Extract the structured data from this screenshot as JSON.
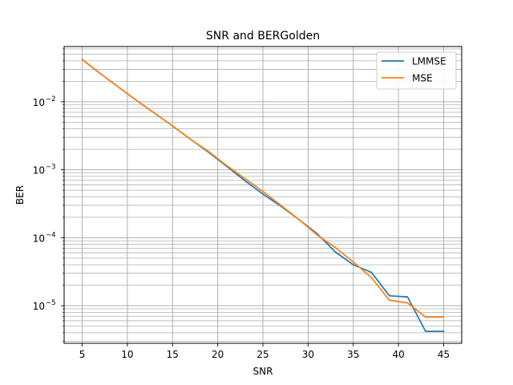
{
  "chart_data": {
    "type": "line",
    "title": "SNR and BERGolden",
    "xlabel": "SNR",
    "ylabel": "BER",
    "xlim": [
      3,
      47
    ],
    "ylim": [
      2.8e-06,
      0.065
    ],
    "yscale": "log",
    "grid": "major and minor, both axes",
    "legend_position": "top-right",
    "x_ticks": [
      5,
      10,
      15,
      20,
      25,
      30,
      35,
      40,
      45
    ],
    "x_tick_labels": [
      "5",
      "10",
      "15",
      "20",
      "25",
      "30",
      "35",
      "40",
      "45"
    ],
    "y_ticks": [
      1e-05,
      0.0001,
      0.001,
      0.01
    ],
    "y_tick_labels": [
      {
        "base": "10",
        "exp": "−5"
      },
      {
        "base": "10",
        "exp": "−4"
      },
      {
        "base": "10",
        "exp": "−3"
      },
      {
        "base": "10",
        "exp": "−2"
      }
    ],
    "series": [
      {
        "name": "LMMSE",
        "color": "#1f77b4",
        "x": [
          5,
          7,
          9,
          11,
          13,
          15,
          17,
          19,
          21,
          23,
          25,
          27,
          29,
          31,
          33,
          35,
          37,
          39,
          41,
          43,
          45
        ],
        "y": [
          0.042,
          0.026,
          0.0165,
          0.0105,
          0.0068,
          0.0044,
          0.0028,
          0.0018,
          0.00112,
          0.00069,
          0.00044,
          0.00029,
          0.000185,
          0.000115,
          6.2e-05,
          4e-05,
          3.1e-05,
          1.4e-05,
          1.35e-05,
          4.2e-06,
          4.2e-06
        ]
      },
      {
        "name": "MSE",
        "color": "#ff7f0e",
        "x": [
          5,
          7,
          9,
          11,
          13,
          15,
          17,
          19,
          21,
          23,
          25,
          27,
          29,
          31,
          33,
          35,
          37,
          39,
          41,
          43,
          45
        ],
        "y": [
          0.042,
          0.026,
          0.0165,
          0.0105,
          0.0068,
          0.0044,
          0.0028,
          0.00185,
          0.00115,
          0.00074,
          0.00048,
          0.0003,
          0.000185,
          0.00011,
          7.2e-05,
          4.4e-05,
          2.6e-05,
          1.2e-05,
          1.1e-05,
          6.8e-06,
          6.8e-06
        ]
      }
    ]
  }
}
